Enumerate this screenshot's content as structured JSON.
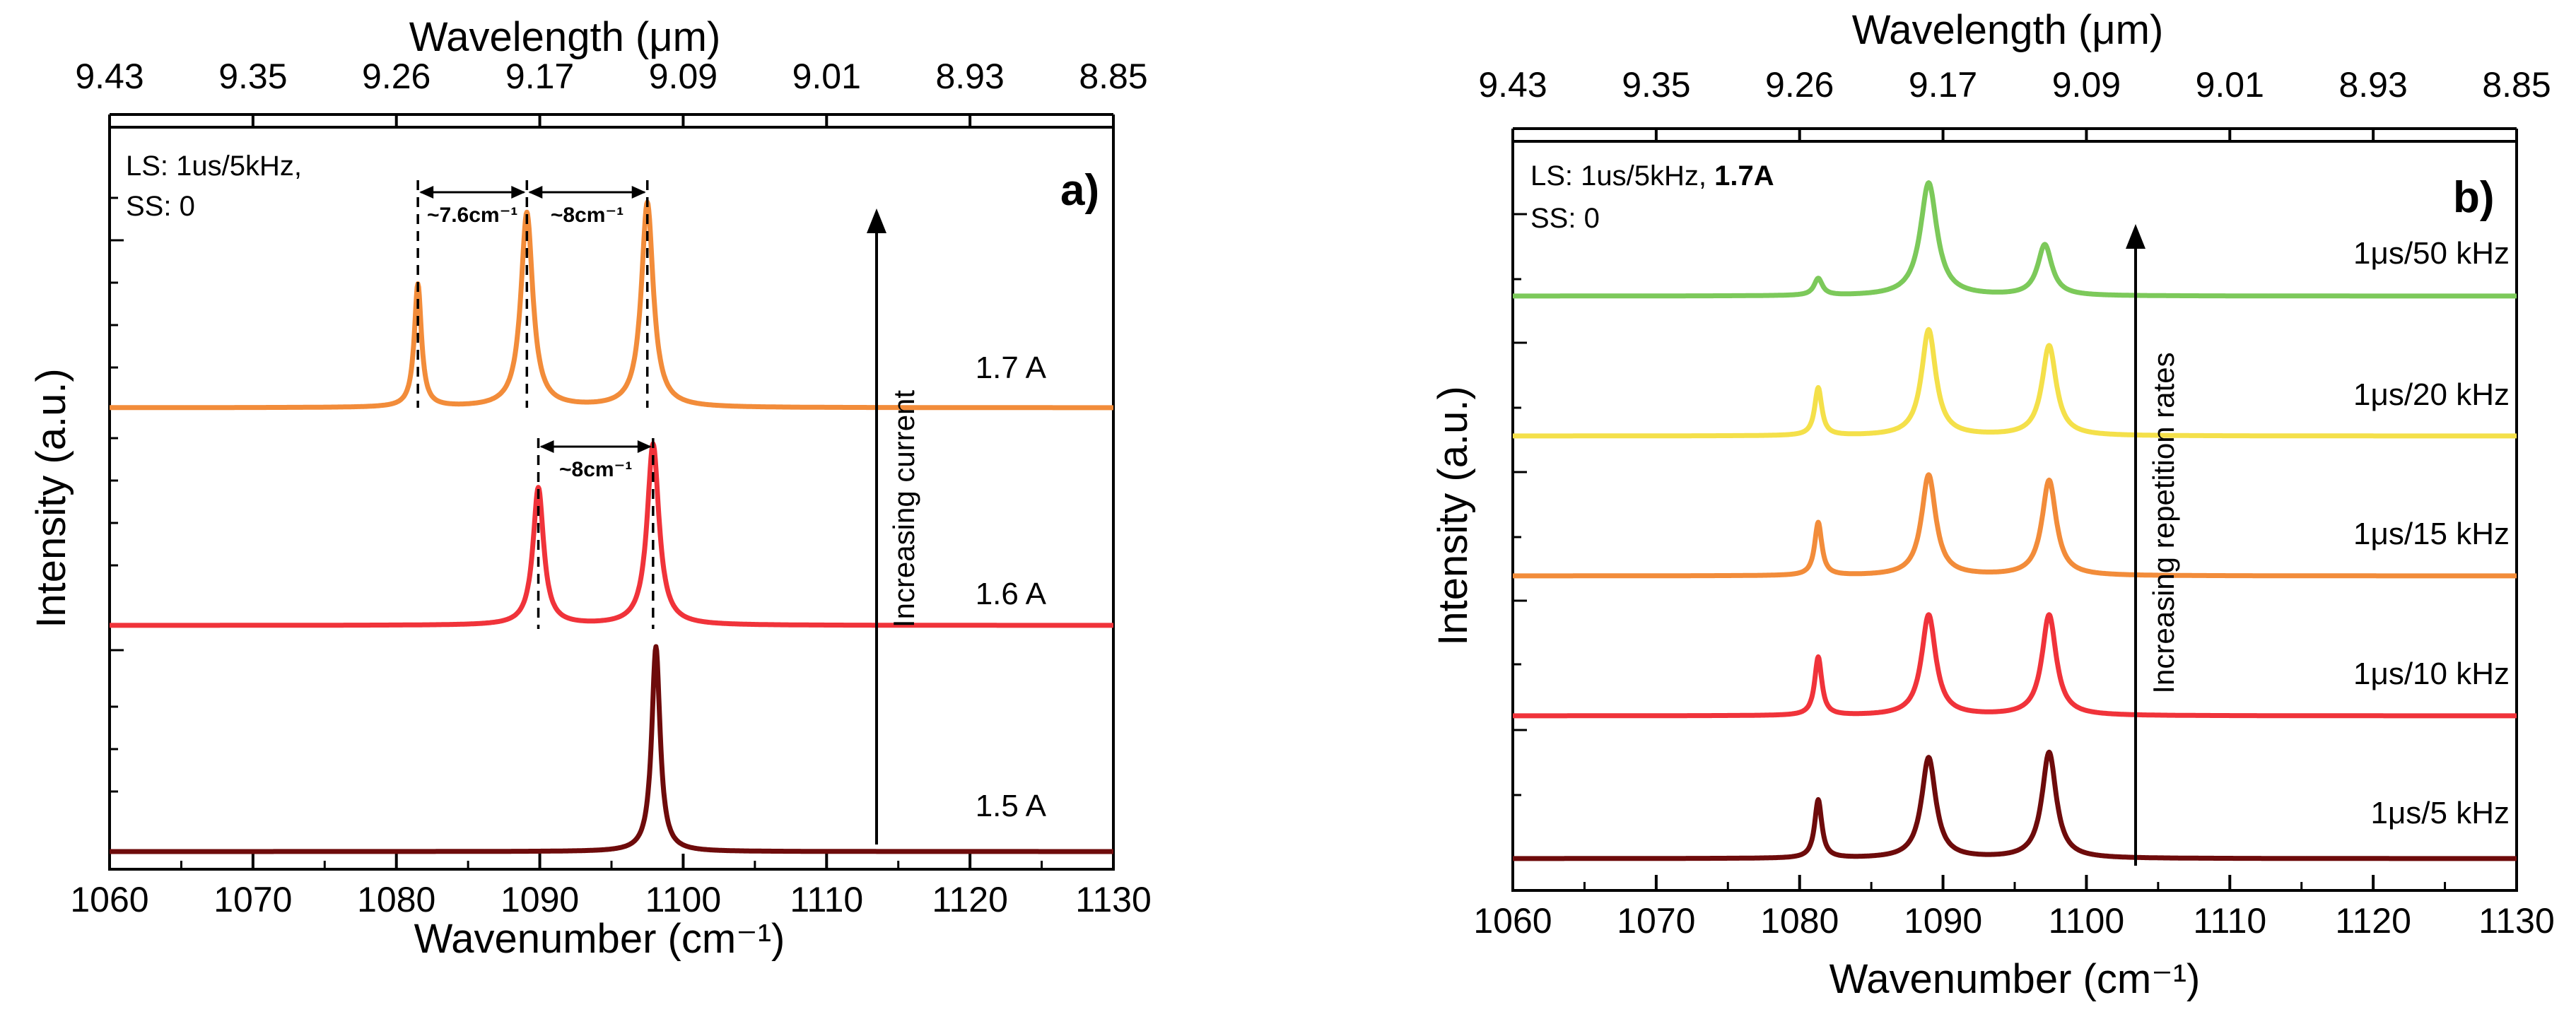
{
  "chart_data": [
    {
      "type": "line",
      "panel": "a)",
      "xlabel": "Wavenumber (cm⁻¹)",
      "x2label": "Wavelength (μm)",
      "ylabel": "Intensity (a.u.)",
      "xlim": [
        1060,
        1130
      ],
      "xticks": [
        "1060",
        "1070",
        "1080",
        "1090",
        "1100",
        "1110",
        "1120",
        "1130"
      ],
      "x2ticks": [
        "9.43",
        "9.35",
        "9.26",
        "9.17",
        "9.09",
        "9.01",
        "8.93",
        "8.85"
      ],
      "annotation_lines": [
        "LS: 1us/5kHz,",
        "SS:  0"
      ],
      "arrow_label": "Increasing current",
      "spacing_labels": [
        "~7.6cm⁻¹",
        "~8cm⁻¹",
        "~8cm⁻¹"
      ],
      "series": [
        {
          "name": "1.5 A",
          "color": "#6e0b0b",
          "peaks": [
            {
              "x": 1098.1,
              "height": 1.0,
              "width": 0.35
            }
          ],
          "baseline_level": 0.0
        },
        {
          "name": "1.6 A",
          "color": "#f0333a",
          "peaks": [
            {
              "x": 1089.9,
              "height": 0.72,
              "width": 0.45
            },
            {
              "x": 1097.9,
              "height": 0.95,
              "width": 0.5
            }
          ],
          "baseline_level": 1.0
        },
        {
          "name": "1.7 A",
          "color": "#f28c3a",
          "peaks": [
            {
              "x": 1081.5,
              "height": 0.6,
              "width": 0.3
            },
            {
              "x": 1089.1,
              "height": 0.95,
              "width": 0.5
            },
            {
              "x": 1097.5,
              "height": 1.0,
              "width": 0.5
            }
          ],
          "baseline_level": 2.0
        }
      ]
    },
    {
      "type": "line",
      "panel": "b)",
      "xlabel": "Wavenumber (cm⁻¹)",
      "x2label": "Wavelength (μm)",
      "ylabel": "Intensity (a.u.)",
      "xlim": [
        1060,
        1130
      ],
      "xticks": [
        "1060",
        "1070",
        "1080",
        "1090",
        "1100",
        "1110",
        "1120",
        "1130"
      ],
      "x2ticks": [
        "9.43",
        "9.35",
        "9.26",
        "9.17",
        "9.09",
        "9.01",
        "8.93",
        "8.85"
      ],
      "annotation_lines": [
        "LS: 1us/5kHz, ",
        "1.7A",
        "SS:  0"
      ],
      "arrow_label": "Increasing repetition rates",
      "series": [
        {
          "name": "1μs/5 kHz",
          "color": "#6e0b0b",
          "peaks": [
            {
              "x": 1081.3,
              "height": 0.55,
              "width": 0.3
            },
            {
              "x": 1089.0,
              "height": 0.95,
              "width": 0.6
            },
            {
              "x": 1097.4,
              "height": 1.0,
              "width": 0.6
            }
          ],
          "baseline_level": 0.0
        },
        {
          "name": "1μs/10 kHz",
          "color": "#f0333a",
          "peaks": [
            {
              "x": 1081.3,
              "height": 0.55,
              "width": 0.3
            },
            {
              "x": 1089.0,
              "height": 0.95,
              "width": 0.6
            },
            {
              "x": 1097.4,
              "height": 0.95,
              "width": 0.6
            }
          ],
          "baseline_level": 1.0
        },
        {
          "name": "1μs/15 kHz",
          "color": "#f28c3a",
          "peaks": [
            {
              "x": 1081.3,
              "height": 0.5,
              "width": 0.3
            },
            {
              "x": 1089.0,
              "height": 0.95,
              "width": 0.6
            },
            {
              "x": 1097.4,
              "height": 0.9,
              "width": 0.6
            }
          ],
          "baseline_level": 2.0
        },
        {
          "name": "1μs/20 kHz",
          "color": "#f4e04a",
          "peaks": [
            {
              "x": 1081.3,
              "height": 0.45,
              "width": 0.3
            },
            {
              "x": 1089.0,
              "height": 1.0,
              "width": 0.6
            },
            {
              "x": 1097.4,
              "height": 0.85,
              "width": 0.6
            }
          ],
          "baseline_level": 3.0
        },
        {
          "name": "1μs/50 kHz",
          "color": "#7cc95a",
          "peaks": [
            {
              "x": 1081.3,
              "height": 0.15,
              "width": 0.35
            },
            {
              "x": 1089.0,
              "height": 1.0,
              "width": 0.7
            },
            {
              "x": 1097.1,
              "height": 0.45,
              "width": 0.6
            }
          ],
          "baseline_level": 4.0
        }
      ]
    }
  ]
}
